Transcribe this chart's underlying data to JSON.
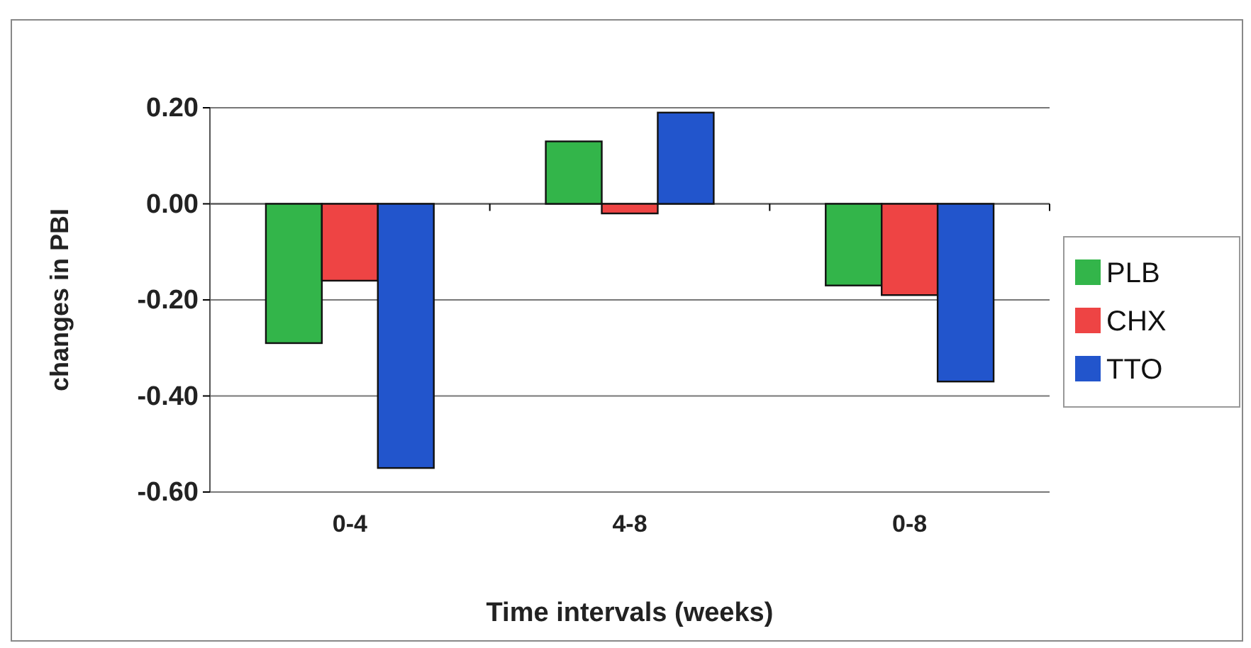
{
  "chart_data": {
    "type": "bar",
    "xlabel": "Time intervals (weeks)",
    "ylabel": "changes in PBI",
    "categories": [
      "0-4",
      "4-8",
      "0-8"
    ],
    "series": [
      {
        "name": "PLB",
        "color": "#33b54a",
        "values": [
          -0.29,
          0.13,
          -0.17
        ]
      },
      {
        "name": "CHX",
        "color": "#ee4444",
        "values": [
          -0.16,
          -0.02,
          -0.19
        ]
      },
      {
        "name": "TTO",
        "color": "#2255cc",
        "values": [
          -0.55,
          0.19,
          -0.37
        ]
      }
    ],
    "ylim": [
      -0.6,
      0.2
    ],
    "yticks": [
      {
        "value": 0.2,
        "label": "0.20"
      },
      {
        "value": 0,
        "label": "0.00"
      },
      {
        "value": -0.2,
        "label": "-0.20"
      },
      {
        "value": -0.4,
        "label": "-0.40"
      },
      {
        "value": -0.6,
        "label": "-0.60"
      }
    ],
    "grid": "y",
    "legend": "right"
  }
}
